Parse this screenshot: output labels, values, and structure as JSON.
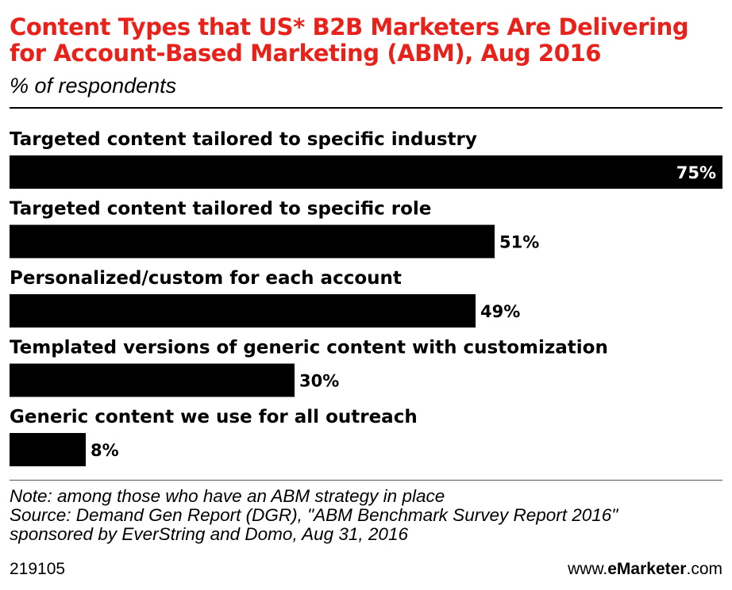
{
  "title": "Content Types that US* B2B Marketers Are Delivering for Account-Based Marketing (ABM), Aug 2016",
  "subtitle": "% of respondents",
  "chart_data": {
    "type": "bar",
    "orientation": "horizontal",
    "title": "Content Types that US* B2B Marketers Are Delivering for Account-Based Marketing (ABM), Aug 2016",
    "subtitle": "% of respondents",
    "categories": [
      "Targeted content tailored to specific industry",
      "Targeted content tailored to specific role",
      "Personalized/custom for each account",
      "Templated versions of generic content with customization",
      "Generic content we use for all outreach"
    ],
    "values": [
      75,
      51,
      49,
      30,
      8
    ],
    "value_labels": [
      "75%",
      "51%",
      "49%",
      "30%",
      "8%"
    ],
    "xlim": [
      0,
      75
    ],
    "bar_color": "#000000",
    "grid": false,
    "legend": "none"
  },
  "notes": {
    "line1": "Note: among those who have an ABM strategy in place",
    "line2": "Source: Demand Gen Report (DGR), \"ABM Benchmark Survey Report 2016\"",
    "line3": "sponsored by EverString and Domo, Aug 31, 2016"
  },
  "footer": {
    "id": "219105",
    "brand_prefix": "www.",
    "brand_name": "eMarketer",
    "brand_suffix": ".com"
  },
  "colors": {
    "title": "#e8211a",
    "bars": "#000000",
    "inside_label": "#ffffff",
    "outside_label": "#000000"
  }
}
